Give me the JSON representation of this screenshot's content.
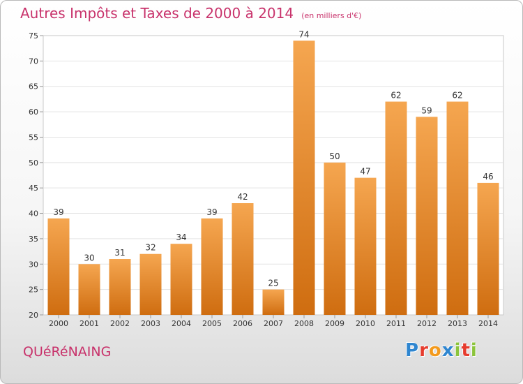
{
  "chart_data": {
    "type": "bar",
    "title": "Autres Impôts et Taxes de 2000 à 2014",
    "subtitle": "(en milliers d'€)",
    "categories": [
      "2000",
      "2001",
      "2002",
      "2003",
      "2004",
      "2005",
      "2006",
      "2007",
      "2008",
      "2009",
      "2010",
      "2011",
      "2012",
      "2013",
      "2014"
    ],
    "values": [
      39,
      30,
      31,
      32,
      34,
      39,
      42,
      25,
      74,
      50,
      47,
      62,
      59,
      62,
      46
    ],
    "ylim": [
      20,
      75
    ],
    "yticks": [
      20,
      25,
      30,
      35,
      40,
      45,
      50,
      55,
      60,
      65,
      70,
      75
    ],
    "grid": true,
    "colors": {
      "bar_top": "#f5a650",
      "bar_bottom": "#cf6d10",
      "title": "#c8326b"
    }
  },
  "commune": "QUéRéNAING",
  "logo": {
    "letters": [
      {
        "ch": "P",
        "color": "#2f86d0"
      },
      {
        "ch": "r",
        "color": "#e63c2e"
      },
      {
        "ch": "o",
        "color": "#f39a1d"
      },
      {
        "ch": "x",
        "color": "#2f86d0"
      },
      {
        "ch": "i",
        "color": "#8cc43c"
      },
      {
        "ch": "t",
        "color": "#e63c2e"
      },
      {
        "ch": "i",
        "color": "#8cc43c"
      }
    ]
  }
}
